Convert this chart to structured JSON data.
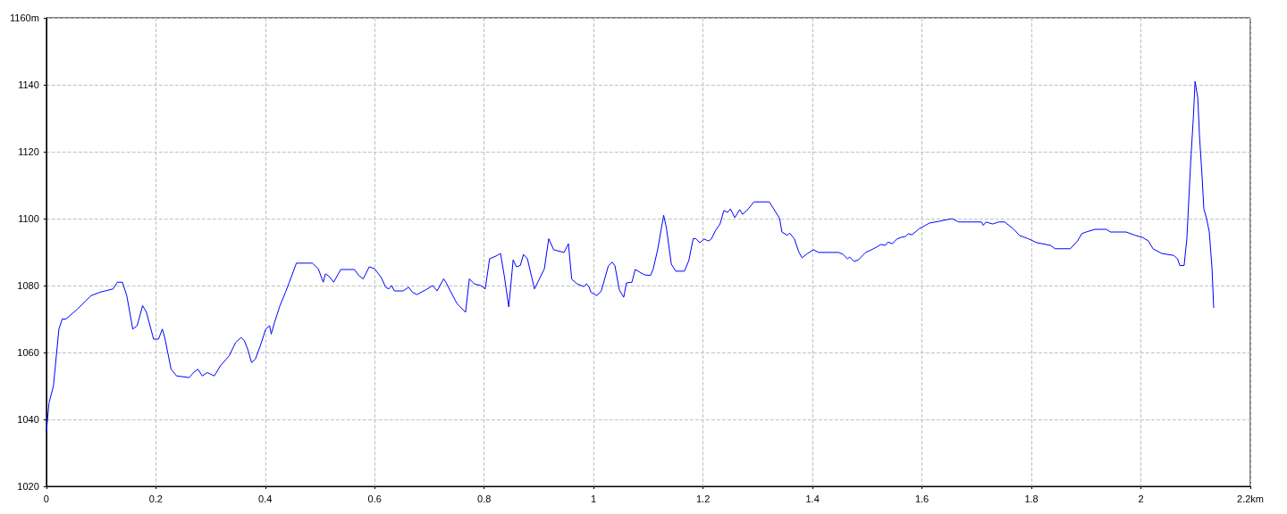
{
  "chart_data": {
    "type": "line",
    "xlim": [
      0,
      2.2
    ],
    "ylim": [
      1020,
      1160
    ],
    "xticks": [
      0,
      0.2,
      0.4,
      0.6,
      0.8,
      1,
      1.2,
      1.4,
      1.6,
      1.8,
      2,
      {
        "value": 2.2,
        "label": "2.2km"
      }
    ],
    "yticks": [
      1020,
      1040,
      1060,
      1080,
      1100,
      1120,
      1140,
      {
        "value": 1160,
        "label": "1160m"
      }
    ],
    "grid": true,
    "marker": "none",
    "line_style": "solid",
    "series": [
      {
        "color": "#0000ff",
        "x": [
          0,
          0.005,
          0.013,
          0.023,
          0.029,
          0.036,
          0.057,
          0.082,
          0.098,
          0.122,
          0.13,
          0.139,
          0.147,
          0.158,
          0.166,
          0.176,
          0.183,
          0.196,
          0.205,
          0.212,
          0.217,
          0.228,
          0.238,
          0.261,
          0.269,
          0.277,
          0.285,
          0.294,
          0.307,
          0.318,
          0.334,
          0.346,
          0.356,
          0.362,
          0.369,
          0.375,
          0.382,
          0.391,
          0.401,
          0.408,
          0.411,
          0.417,
          0.427,
          0.437,
          0.444,
          0.457,
          0.486,
          0.497,
          0.506,
          0.51,
          0.517,
          0.525,
          0.538,
          0.563,
          0.571,
          0.579,
          0.59,
          0.6,
          0.612,
          0.62,
          0.626,
          0.631,
          0.636,
          0.652,
          0.662,
          0.669,
          0.677,
          0.693,
          0.706,
          0.714,
          0.726,
          0.73,
          0.75,
          0.766,
          0.773,
          0.782,
          0.794,
          0.802,
          0.81,
          0.824,
          0.83,
          0.837,
          0.845,
          0.853,
          0.859,
          0.866,
          0.872,
          0.879,
          0.892,
          0.91,
          0.918,
          0.927,
          0.946,
          0.954,
          0.96,
          0.97,
          0.982,
          0.987,
          0.992,
          0.995,
          1.006,
          1.014,
          1.027,
          1.034,
          1.039,
          1.047,
          1.055,
          1.06,
          1.07,
          1.076,
          1.093,
          1.104,
          1.109,
          1.117,
          1.128,
          1.133,
          1.142,
          1.15,
          1.166,
          1.174,
          1.182,
          1.187,
          1.194,
          1.202,
          1.21,
          1.215,
          1.223,
          1.231,
          1.238,
          1.245,
          1.25,
          1.258,
          1.267,
          1.272,
          1.28,
          1.293,
          1.321,
          1.331,
          1.34,
          1.344,
          1.354,
          1.358,
          1.367,
          1.375,
          1.381,
          1.391,
          1.402,
          1.411,
          1.448,
          1.456,
          1.464,
          1.468,
          1.476,
          1.484,
          1.497,
          1.508,
          1.517,
          1.525,
          1.533,
          1.538,
          1.546,
          1.554,
          1.562,
          1.57,
          1.575,
          1.582,
          1.595,
          1.606,
          1.614,
          1.631,
          1.655,
          1.667,
          1.709,
          1.712,
          1.717,
          1.729,
          1.74,
          1.751,
          1.768,
          1.778,
          1.794,
          1.81,
          1.835,
          1.843,
          1.871,
          1.884,
          1.892,
          1.9,
          1.916,
          1.937,
          1.944,
          1.973,
          1.99,
          2.003,
          2.014,
          2.022,
          2.038,
          2.06,
          2.067,
          2.071,
          2.079,
          2.084,
          2.091,
          2.096,
          2.099,
          2.104,
          2.107,
          2.112,
          2.115,
          2.12,
          2.125,
          2.13,
          2.133
        ],
        "values": [
          1036,
          1045,
          1050,
          1067,
          1070,
          1070,
          1073,
          1077,
          1078,
          1079,
          1081,
          1081,
          1077,
          1067,
          1068,
          1074,
          1072,
          1064,
          1064,
          1067,
          1064,
          1055,
          1053,
          1052.5,
          1054,
          1055,
          1053,
          1054,
          1053,
          1056,
          1059,
          1063,
          1064.5,
          1063.5,
          1060.5,
          1057,
          1058,
          1062,
          1067,
          1068,
          1065.5,
          1069,
          1074,
          1078,
          1081,
          1086.7,
          1086.7,
          1085,
          1081,
          1083.5,
          1082.7,
          1081,
          1084.8,
          1084.8,
          1083,
          1082,
          1085.6,
          1085,
          1082.4,
          1079.5,
          1079,
          1080,
          1078.4,
          1078.4,
          1079.5,
          1078,
          1077.3,
          1078.7,
          1080,
          1078.4,
          1082,
          1081,
          1074.7,
          1072,
          1082,
          1080.5,
          1080,
          1079,
          1088,
          1089,
          1089.6,
          1082.7,
          1073.6,
          1087.7,
          1085.6,
          1086,
          1089.3,
          1088,
          1079,
          1085,
          1094,
          1090.7,
          1089.9,
          1092.5,
          1081.9,
          1080.5,
          1079.7,
          1080.5,
          1079.5,
          1078,
          1077,
          1078.4,
          1085.9,
          1087,
          1085.9,
          1078.7,
          1076.5,
          1080.8,
          1081,
          1084.8,
          1083.2,
          1083,
          1085,
          1090.7,
          1101,
          1097.3,
          1086.4,
          1084.3,
          1084.3,
          1087.5,
          1094,
          1094,
          1092.8,
          1093.9,
          1093.3,
          1093.9,
          1096.5,
          1098.4,
          1102.4,
          1101.9,
          1102.9,
          1100.3,
          1102.7,
          1101.3,
          1102.4,
          1105,
          1105,
          1102.4,
          1100,
          1096,
          1095,
          1095.7,
          1093.9,
          1090,
          1088.3,
          1089.6,
          1090.7,
          1089.9,
          1089.9,
          1089.3,
          1088,
          1088.5,
          1087.2,
          1087.7,
          1089.9,
          1090.7,
          1091.5,
          1092.3,
          1092,
          1093,
          1092.5,
          1093.9,
          1094.4,
          1094.7,
          1095.5,
          1095.2,
          1097,
          1098,
          1098.7,
          1099.2,
          1100,
          1099,
          1099,
          1098,
          1099,
          1098.4,
          1099,
          1099,
          1096.8,
          1095,
          1094,
          1092.8,
          1092,
          1091,
          1091,
          1093.3,
          1095.5,
          1096,
          1096.8,
          1096.8,
          1096,
          1096,
          1095,
          1094.4,
          1093.3,
          1091,
          1089.6,
          1089,
          1088,
          1086,
          1086,
          1094,
          1117,
          1130.7,
          1141,
          1136,
          1125,
          1112,
          1103,
          1100,
          1096,
          1085,
          1073.3
        ]
      }
    ]
  }
}
